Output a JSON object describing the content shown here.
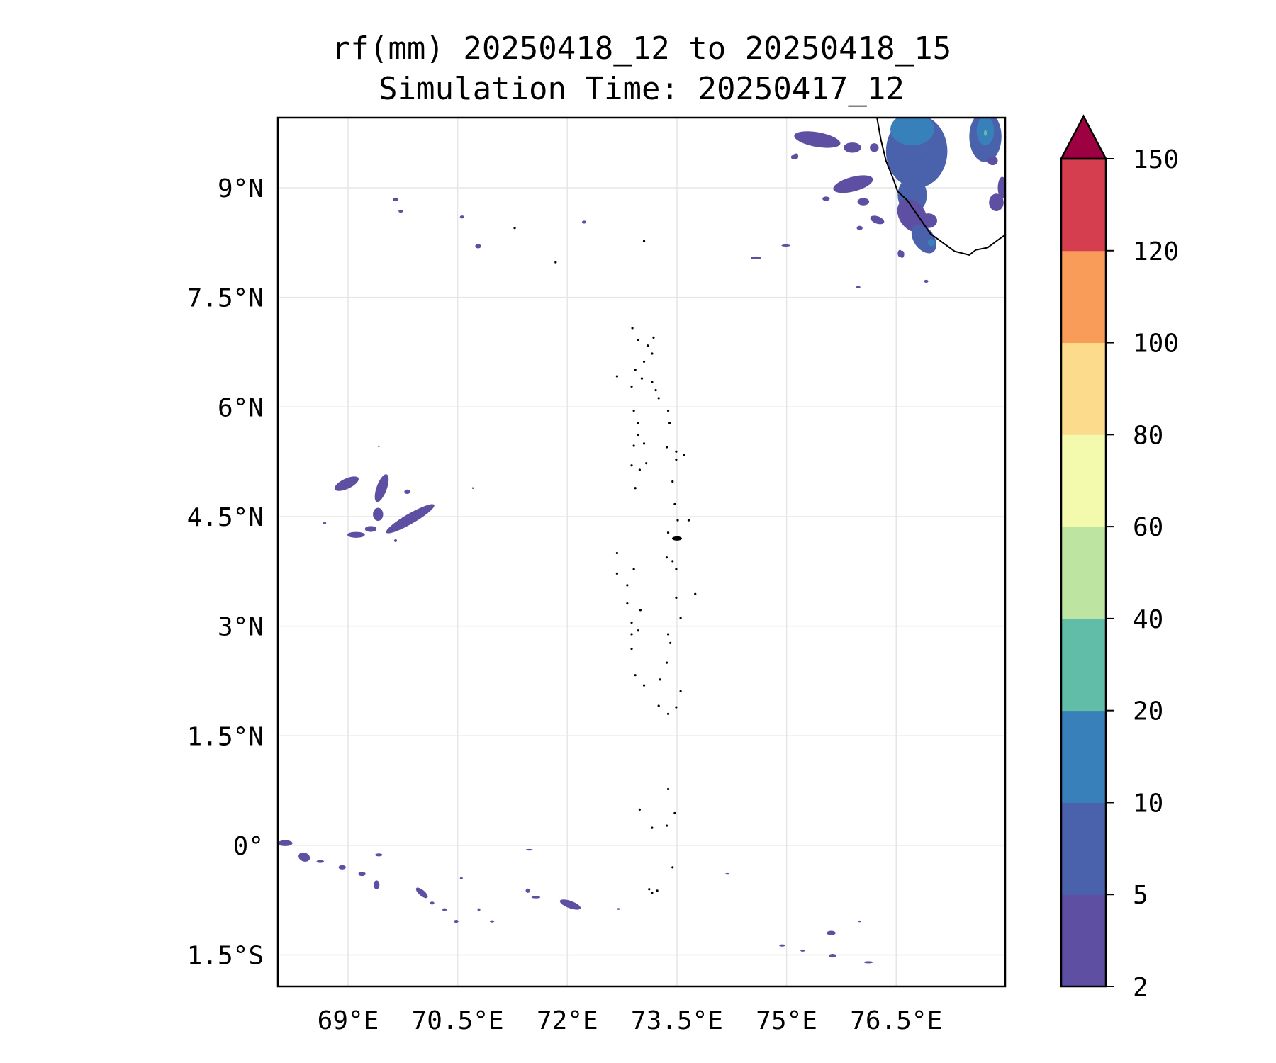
{
  "chart_data": {
    "type": "heatmap",
    "title_line1": "rf(mm) 20250418_12 to 20250418_15",
    "title_line2": "Simulation Time: 20250417_12",
    "xlabel": "",
    "ylabel": "",
    "xlim": [
      68.05,
      78.0
    ],
    "ylim": [
      -1.93,
      10.0
    ],
    "grid": true,
    "x_ticks": [
      69,
      70.5,
      72,
      73.5,
      75,
      76.5
    ],
    "x_tick_labels": [
      "69°E",
      "70.5°E",
      "72°E",
      "73.5°E",
      "75°E",
      "76.5°E"
    ],
    "y_ticks": [
      9,
      7.5,
      6,
      4.5,
      3,
      1.5,
      0,
      -1.5
    ],
    "y_tick_labels": [
      "9°N",
      "7.5°N",
      "6°N",
      "4.5°N",
      "3°N",
      "1.5°N",
      "0°",
      "1.5°S"
    ],
    "colorbar": {
      "levels": [
        2,
        5,
        10,
        20,
        40,
        60,
        80,
        100,
        120,
        150
      ],
      "labels": [
        "2",
        "5",
        "10",
        "20",
        "40",
        "60",
        "80",
        "100",
        "120",
        "150"
      ],
      "colors": [
        "#5e4fa2",
        "#4a61ab",
        "#3880b9",
        "#62bda8",
        "#bde4a0",
        "#f4faad",
        "#fcdc8c",
        "#f99b59",
        "#d53e4e"
      ],
      "extend_color": "#9e0142",
      "extend": "max",
      "placement": "right"
    },
    "rain_patches_note_format": "[lon, lat, half-width deg, half-height deg, rotation deg, level index]",
    "rain_patches": [
      [
        76.78,
        9.5,
        0.42,
        0.5,
        0,
        1
      ],
      [
        76.72,
        9.8,
        0.3,
        0.22,
        0,
        2
      ],
      [
        76.55,
        9.75,
        0.1,
        0.12,
        0,
        2
      ],
      [
        76.72,
        8.9,
        0.2,
        0.25,
        0,
        1
      ],
      [
        76.72,
        8.62,
        0.18,
        0.25,
        -35,
        0
      ],
      [
        76.88,
        8.3,
        0.14,
        0.22,
        -35,
        1
      ],
      [
        76.98,
        8.25,
        0.05,
        0.05,
        0,
        2
      ],
      [
        77.72,
        9.7,
        0.22,
        0.35,
        0,
        1
      ],
      [
        77.72,
        9.78,
        0.12,
        0.2,
        0,
        2
      ],
      [
        77.72,
        9.75,
        0.02,
        0.04,
        0,
        3
      ],
      [
        77.82,
        9.37,
        0.07,
        0.06,
        0,
        0
      ],
      [
        77.87,
        8.8,
        0.1,
        0.12,
        0,
        0
      ],
      [
        77.95,
        9.0,
        0.06,
        0.15,
        0,
        0
      ],
      [
        76.94,
        8.55,
        0.12,
        0.1,
        0,
        0
      ],
      [
        75.42,
        9.66,
        0.32,
        0.1,
        10,
        0
      ],
      [
        75.9,
        9.55,
        0.12,
        0.07,
        0,
        0
      ],
      [
        76.2,
        9.55,
        0.06,
        0.06,
        0,
        0
      ],
      [
        75.91,
        9.05,
        0.28,
        0.1,
        -15,
        0
      ],
      [
        76.05,
        8.81,
        0.08,
        0.05,
        0,
        0
      ],
      [
        76.24,
        8.56,
        0.1,
        0.05,
        20,
        0
      ],
      [
        75.54,
        8.85,
        0.05,
        0.03,
        0,
        0
      ],
      [
        76.0,
        8.45,
        0.04,
        0.03,
        0,
        0
      ],
      [
        76.55,
        8.1,
        0.03,
        0.05,
        0,
        0
      ],
      [
        75.1,
        9.42,
        0.04,
        0.03,
        0,
        0
      ],
      [
        68.98,
        4.95,
        0.18,
        0.07,
        -25,
        0
      ],
      [
        69.46,
        4.89,
        0.07,
        0.2,
        20,
        0
      ],
      [
        69.41,
        4.53,
        0.07,
        0.09,
        0,
        0
      ],
      [
        69.85,
        4.47,
        0.38,
        0.07,
        -30,
        0
      ],
      [
        69.11,
        4.25,
        0.12,
        0.04,
        0,
        0
      ],
      [
        69.31,
        4.33,
        0.08,
        0.04,
        0,
        0
      ],
      [
        69.81,
        4.84,
        0.04,
        0.03,
        0,
        0
      ],
      [
        69.65,
        4.17,
        0.02,
        0.02,
        0,
        0
      ],
      [
        68.68,
        4.41,
        0.02,
        0.015,
        0,
        0
      ],
      [
        69.42,
        5.46,
        0.01,
        0.01,
        0,
        0
      ],
      [
        70.71,
        4.89,
        0.015,
        0.01,
        0,
        0
      ],
      [
        69.65,
        8.84,
        0.04,
        0.025,
        0,
        0
      ],
      [
        69.72,
        8.68,
        0.03,
        0.02,
        0,
        0
      ],
      [
        70.56,
        8.6,
        0.03,
        0.02,
        0,
        0
      ],
      [
        70.78,
        8.2,
        0.04,
        0.03,
        0,
        0
      ],
      [
        72.23,
        8.53,
        0.03,
        0.02,
        0,
        0
      ],
      [
        74.58,
        8.04,
        0.07,
        0.02,
        0,
        0
      ],
      [
        74.99,
        8.21,
        0.06,
        0.015,
        0,
        0
      ],
      [
        75.98,
        7.64,
        0.03,
        0.015,
        0,
        0
      ],
      [
        76.58,
        8.09,
        0.03,
        0.05,
        0,
        0
      ],
      [
        76.91,
        7.72,
        0.03,
        0.02,
        0,
        0
      ],
      [
        75.13,
        9.43,
        0.03,
        0.04,
        0,
        0
      ],
      [
        68.14,
        0.03,
        0.1,
        0.04,
        0,
        0
      ],
      [
        68.4,
        -0.16,
        0.08,
        0.06,
        20,
        0
      ],
      [
        68.62,
        -0.22,
        0.05,
        0.02,
        0,
        0
      ],
      [
        68.92,
        -0.3,
        0.05,
        0.03,
        0,
        0
      ],
      [
        69.19,
        -0.39,
        0.05,
        0.03,
        0,
        0
      ],
      [
        69.39,
        -0.54,
        0.04,
        0.06,
        0,
        0
      ],
      [
        69.42,
        -0.13,
        0.05,
        0.02,
        0,
        0
      ],
      [
        70.01,
        -0.65,
        0.1,
        0.04,
        40,
        0
      ],
      [
        70.15,
        -0.79,
        0.03,
        0.02,
        0,
        0
      ],
      [
        70.32,
        -0.88,
        0.03,
        0.02,
        0,
        0
      ],
      [
        70.48,
        -1.04,
        0.03,
        0.02,
        0,
        0
      ],
      [
        70.79,
        -0.88,
        0.02,
        0.02,
        0,
        0
      ],
      [
        70.97,
        -1.04,
        0.03,
        0.015,
        0,
        0
      ],
      [
        70.55,
        -0.45,
        0.02,
        0.015,
        0,
        0
      ],
      [
        71.46,
        -0.62,
        0.03,
        0.03,
        0,
        0
      ],
      [
        71.57,
        -0.71,
        0.06,
        0.015,
        0,
        0
      ],
      [
        71.48,
        -0.06,
        0.05,
        0.01,
        0,
        0
      ],
      [
        72.04,
        -0.81,
        0.15,
        0.05,
        20,
        0
      ],
      [
        72.7,
        -0.87,
        0.02,
        0.01,
        0,
        0
      ],
      [
        74.19,
        -0.39,
        0.03,
        0.01,
        0,
        0
      ],
      [
        74.94,
        -1.37,
        0.04,
        0.015,
        0,
        0
      ],
      [
        75.22,
        -1.44,
        0.03,
        0.015,
        0,
        0
      ],
      [
        75.61,
        -1.2,
        0.06,
        0.03,
        0,
        0
      ],
      [
        75.63,
        -1.51,
        0.05,
        0.025,
        0,
        0
      ],
      [
        76.12,
        -1.6,
        0.06,
        0.015,
        0,
        0
      ],
      [
        76.0,
        -1.04,
        0.02,
        0.01,
        0,
        0
      ]
    ],
    "coastline": [
      [
        76.24,
        9.99
      ],
      [
        76.24,
        9.94
      ],
      [
        76.29,
        9.66
      ],
      [
        76.36,
        9.37
      ],
      [
        76.46,
        9.12
      ],
      [
        76.52,
        8.95
      ],
      [
        76.65,
        8.83
      ],
      [
        76.97,
        8.37
      ],
      [
        77.3,
        8.13
      ],
      [
        77.5,
        8.08
      ],
      [
        77.59,
        8.15
      ],
      [
        77.75,
        8.18
      ],
      [
        77.94,
        8.32
      ],
      [
        78.0,
        8.36
      ]
    ],
    "islands": [
      [
        72.89,
        7.08
      ],
      [
        72.97,
        6.92
      ],
      [
        73.1,
        6.84
      ],
      [
        73.18,
        6.95
      ],
      [
        73.16,
        6.73
      ],
      [
        73.05,
        6.62
      ],
      [
        72.93,
        6.51
      ],
      [
        73.02,
        6.39
      ],
      [
        73.16,
        6.34
      ],
      [
        73.21,
        6.23
      ],
      [
        73.25,
        6.12
      ],
      [
        72.88,
        6.28
      ],
      [
        72.68,
        6.42
      ],
      [
        72.91,
        5.95
      ],
      [
        72.97,
        5.78
      ],
      [
        72.97,
        5.62
      ],
      [
        72.91,
        5.47
      ],
      [
        73.05,
        5.5
      ],
      [
        73.38,
        5.95
      ],
      [
        73.4,
        5.78
      ],
      [
        73.36,
        5.45
      ],
      [
        73.49,
        5.39
      ],
      [
        73.6,
        5.34
      ],
      [
        73.49,
        5.28
      ],
      [
        72.88,
        5.2
      ],
      [
        72.99,
        5.14
      ],
      [
        73.08,
        5.23
      ],
      [
        72.93,
        4.89
      ],
      [
        73.44,
        4.98
      ],
      [
        73.47,
        4.67
      ],
      [
        73.51,
        4.45
      ],
      [
        73.66,
        4.45
      ],
      [
        73.38,
        4.28
      ],
      [
        73.47,
        4.2
      ],
      [
        73.52,
        4.22
      ],
      [
        73.36,
        3.94
      ],
      [
        73.44,
        3.89
      ],
      [
        72.68,
        4.0
      ],
      [
        72.68,
        3.72
      ],
      [
        72.91,
        3.78
      ],
      [
        72.82,
        3.56
      ],
      [
        73.49,
        3.78
      ],
      [
        73.75,
        3.44
      ],
      [
        72.82,
        3.31
      ],
      [
        73.0,
        3.22
      ],
      [
        72.88,
        3.05
      ],
      [
        73.49,
        3.39
      ],
      [
        73.55,
        3.11
      ],
      [
        72.88,
        2.89
      ],
      [
        72.97,
        2.94
      ],
      [
        73.38,
        2.89
      ],
      [
        73.41,
        2.77
      ],
      [
        72.88,
        2.69
      ],
      [
        73.36,
        2.5
      ],
      [
        72.93,
        2.33
      ],
      [
        73.05,
        2.19
      ],
      [
        73.27,
        2.27
      ],
      [
        73.55,
        2.11
      ],
      [
        73.49,
        1.89
      ],
      [
        73.38,
        1.8
      ],
      [
        73.25,
        1.91
      ],
      [
        72.99,
        0.49
      ],
      [
        73.16,
        0.24
      ],
      [
        73.36,
        0.27
      ],
      [
        73.47,
        0.44
      ],
      [
        73.38,
        0.77
      ],
      [
        73.44,
        -0.3
      ],
      [
        73.16,
        -0.65
      ],
      [
        73.12,
        -0.6
      ],
      [
        73.23,
        -0.62
      ],
      [
        73.05,
        8.27
      ],
      [
        71.84,
        7.98
      ],
      [
        71.28,
        8.45
      ]
    ]
  }
}
